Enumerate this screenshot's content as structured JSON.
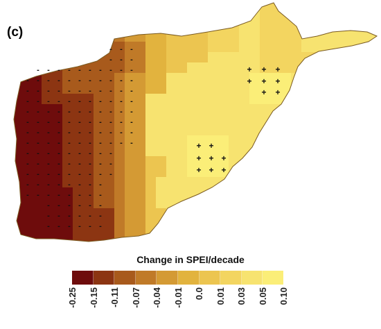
{
  "panel": {
    "label": "(c)"
  },
  "legend": {
    "title": "Change in SPEI/decade",
    "ticks": [
      "-0.25",
      "-0.15",
      "-0.11",
      "-0.07",
      "-0.04",
      "-0.01",
      "0.0",
      "0.01",
      "0.03",
      "0.05",
      "0.10"
    ],
    "colors": [
      "#6e0c0c",
      "#8c3512",
      "#a85a1c",
      "#c07a28",
      "#d49a34",
      "#e2b33e",
      "#ecc550",
      "#f3d560",
      "#f7e370",
      "#fbee78"
    ]
  },
  "map": {
    "outline_color": "#7a5a20",
    "sign_markers": {
      "negative": "-",
      "positive": "+"
    }
  }
}
